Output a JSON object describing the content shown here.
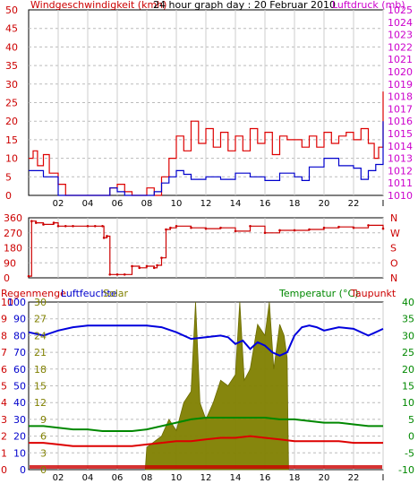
{
  "window": {
    "title": ""
  },
  "chart_data": [
    {
      "type": "line",
      "title": "24 hour graph day : 20 Februar 2010",
      "xlabel": "",
      "ylabel": "Windgeschwindigkeit (kmh)",
      "y2label": "Luftdruck (mb)",
      "x_ticks": [
        "02",
        "04",
        "06",
        "08",
        "10",
        "12",
        "14",
        "16",
        "18",
        "20",
        "22",
        "I"
      ],
      "ylim": [
        0,
        50
      ],
      "y_ticks": [
        "0",
        "5",
        "10",
        "15",
        "20",
        "25",
        "30",
        "35",
        "40",
        "45",
        "50"
      ],
      "y2lim": [
        1010,
        1025
      ],
      "y2_ticks": [
        "1010",
        "1011",
        "1012",
        "1013",
        "1014",
        "1015",
        "1016",
        "1017",
        "1018",
        "1019",
        "1020",
        "1021",
        "1022",
        "1023",
        "1024",
        "1025"
      ],
      "grid": true,
      "colors": {
        "wind": "#dd0000",
        "pressure": "#0000cc",
        "axis_left": "#cc0000",
        "axis_right": "#cc00cc"
      },
      "series": [
        {
          "name": "Windgeschwindigkeit",
          "axis": "left",
          "x": [
            0,
            0.3,
            0.6,
            1.0,
            1.4,
            2.0,
            2.5,
            3.0,
            4.0,
            5.0,
            5.5,
            6.0,
            6.5,
            7.0,
            7.5,
            8.0,
            8.5,
            9.0,
            9.5,
            10.0,
            10.5,
            11.0,
            11.5,
            12.0,
            12.5,
            13.0,
            13.5,
            14.0,
            14.5,
            15.0,
            15.5,
            16.0,
            16.5,
            17.0,
            17.5,
            18.0,
            18.5,
            19.0,
            19.5,
            20.0,
            20.5,
            21.0,
            21.5,
            22.0,
            22.5,
            23.0,
            23.4,
            23.7,
            24.0
          ],
          "values": [
            10,
            12,
            8,
            11,
            6,
            3,
            0,
            0,
            0,
            0,
            2,
            3,
            1,
            0,
            0,
            2,
            0,
            5,
            10,
            16,
            12,
            20,
            14,
            18,
            13,
            17,
            12,
            16,
            12,
            18,
            14,
            17,
            11,
            16,
            15,
            15,
            13,
            16,
            13,
            17,
            14,
            16,
            17,
            15,
            18,
            14,
            10,
            13,
            28
          ]
        },
        {
          "name": "Luftdruck",
          "axis": "right",
          "x": [
            0,
            1,
            2,
            3,
            4,
            5,
            5.5,
            6,
            6.5,
            7,
            8,
            8.5,
            9,
            9.5,
            10,
            10.5,
            11,
            12,
            13,
            14,
            15,
            16,
            17,
            18,
            18.5,
            19,
            20,
            21,
            22,
            22.5,
            23,
            23.5,
            24
          ],
          "values": [
            1012,
            1011.5,
            1010,
            1010,
            1010,
            1010,
            1010.6,
            1010.3,
            1010,
            1010,
            1010,
            1010.3,
            1011,
            1011.5,
            1012,
            1011.7,
            1011.3,
            1011.5,
            1011.3,
            1011.8,
            1011.5,
            1011.2,
            1011.8,
            1011.5,
            1011.2,
            1012.3,
            1013,
            1012.4,
            1012.2,
            1011.3,
            1012,
            1012.5,
            1016
          ]
        }
      ]
    },
    {
      "type": "scatter",
      "title": "",
      "ylabel": "Windrichtung",
      "ylim": [
        0,
        360
      ],
      "y_ticks": [
        "0",
        "90",
        "180",
        "270",
        "360"
      ],
      "y2_ticks": [
        "N",
        "O",
        "S",
        "W",
        "N"
      ],
      "grid": true,
      "colors": {
        "direction": "#cc0000",
        "axis": "#cc0000"
      },
      "series": [
        {
          "name": "Windrichtung",
          "x": [
            0,
            0.2,
            0.5,
            1.0,
            1.7,
            2.0,
            2.5,
            3.0,
            4.0,
            4.5,
            5.0,
            5.1,
            5.3,
            5.5,
            6.0,
            6.5,
            7.0,
            7.5,
            8.0,
            8.5,
            8.7,
            9.0,
            9.3,
            9.6,
            10,
            11,
            12,
            13,
            14,
            15,
            16,
            17,
            18,
            19,
            20,
            21,
            22,
            23,
            24
          ],
          "values": [
            10,
            340,
            330,
            320,
            330,
            310,
            310,
            310,
            310,
            310,
            310,
            240,
            250,
            20,
            20,
            20,
            70,
            60,
            70,
            60,
            75,
            120,
            290,
            300,
            310,
            300,
            295,
            300,
            280,
            310,
            270,
            285,
            285,
            290,
            300,
            305,
            300,
            315,
            295
          ]
        }
      ]
    },
    {
      "type": "area",
      "title": "",
      "ylabel": "Regenmenge",
      "labels": [
        "Regenmenge",
        "Luftfeuchte",
        "Solar",
        "Temperatur (°C)",
        "Taupunkt"
      ],
      "axis_rain_ticks": [
        "0",
        "1",
        "2",
        "3",
        "4",
        "5",
        "6",
        "7",
        "8",
        "9",
        "10"
      ],
      "axis_humidity_ticks": [
        "0",
        "10",
        "20",
        "30",
        "40",
        "50",
        "60",
        "70",
        "80",
        "90",
        "100"
      ],
      "axis_solar_ticks": [
        "0",
        "3",
        "6",
        "9",
        "12",
        "15",
        "18",
        "21",
        "24",
        "27",
        "30"
      ],
      "axis_temp_ticks": [
        "-10",
        "-5",
        "0",
        "5",
        "10",
        "15",
        "20",
        "25",
        "30",
        "35",
        "40"
      ],
      "ylim_humidity": [
        0,
        100
      ],
      "ylim_temp": [
        -10,
        40
      ],
      "grid": true,
      "colors": {
        "humidity": "#0000dd",
        "solar": "#808000",
        "temperature": "#008800",
        "dewpoint": "#dd0000",
        "rain": "#cc0000",
        "axis_rain": "#cc0000",
        "axis_humidity": "#0000cc",
        "axis_solar": "#808000",
        "axis_temp": "#008800"
      },
      "series": [
        {
          "name": "Luftfeuchte",
          "axis": "humidity",
          "x": [
            0,
            1,
            2,
            3,
            4,
            5,
            6,
            7,
            8,
            9,
            10,
            11,
            12,
            13,
            13.5,
            14,
            14.5,
            15,
            15.5,
            16,
            16.5,
            17,
            17.5,
            18,
            18.5,
            19,
            19.5,
            20,
            21,
            22,
            23,
            23.5,
            24
          ],
          "values": [
            82,
            80,
            83,
            85,
            86,
            86,
            86,
            86,
            86,
            85,
            82,
            78,
            79,
            80,
            79,
            75,
            77,
            72,
            76,
            74,
            70,
            68,
            70,
            80,
            85,
            86,
            85,
            83,
            85,
            84,
            80,
            82,
            84
          ]
        },
        {
          "name": "Solar",
          "axis": "solar",
          "x": [
            7.9,
            8.0,
            8.5,
            9.0,
            9.5,
            10.0,
            10.5,
            11.0,
            11.3,
            11.6,
            12.0,
            12.5,
            13.0,
            13.5,
            14.0,
            14.3,
            14.6,
            15.0,
            15.5,
            16.0,
            16.3,
            16.6,
            17.0,
            17.3,
            17.5,
            17.6
          ],
          "values": [
            0,
            4,
            5,
            6,
            9,
            7,
            12,
            14,
            30,
            12,
            9,
            12,
            16,
            15,
            17,
            30,
            16,
            18,
            26,
            24,
            30,
            18,
            26,
            24,
            20,
            0
          ]
        },
        {
          "name": "Temperatur",
          "axis": "temp",
          "x": [
            0,
            1,
            2,
            3,
            4,
            5,
            6,
            7,
            8,
            9,
            10,
            11,
            12,
            13,
            14,
            15,
            16,
            17,
            18,
            19,
            20,
            21,
            22,
            23,
            24
          ],
          "values": [
            3,
            3,
            2.5,
            2,
            2,
            1.5,
            1.5,
            1.5,
            2,
            3,
            4,
            5,
            5.5,
            5.5,
            5.5,
            5.5,
            5.5,
            5,
            5,
            4.5,
            4,
            4,
            3.5,
            3,
            3
          ]
        },
        {
          "name": "Taupunkt",
          "axis": "temp",
          "x": [
            0,
            1,
            2,
            3,
            4,
            5,
            6,
            7,
            8,
            9,
            10,
            11,
            12,
            13,
            14,
            15,
            16,
            17,
            18,
            19,
            20,
            21,
            22,
            23,
            24
          ],
          "values": [
            -2,
            -2,
            -2.5,
            -3,
            -3,
            -3,
            -3,
            -3,
            -2.5,
            -2,
            -1.5,
            -1.5,
            -1,
            -0.5,
            -0.5,
            0,
            -0.5,
            -1,
            -1.5,
            -1.5,
            -1.5,
            -1.5,
            -2,
            -2,
            -2
          ]
        }
      ]
    }
  ]
}
